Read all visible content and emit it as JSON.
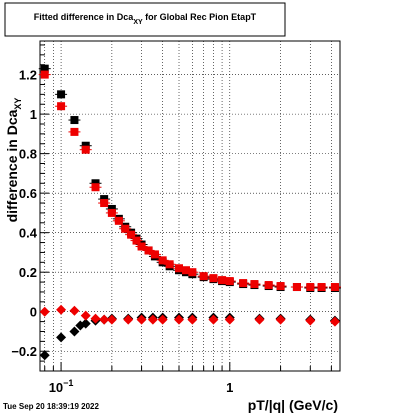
{
  "chart_data": {
    "type": "scatter",
    "title": {
      "base": "Fitted difference in Dca",
      "sub": "XY",
      "rest": " for Global Rec Pion EtapT"
    },
    "xlabel": "pT/|q| (GeV/c)",
    "ylabel": {
      "base": "difference in Dca",
      "sub": "XY"
    },
    "x_scale": "log",
    "xlim": [
      0.075,
      4.5
    ],
    "ylim": [
      -0.3,
      1.37
    ],
    "grid": true,
    "x_ticks": [
      {
        "value": 0.1,
        "base": "10",
        "exp": "−1"
      },
      {
        "value": 1,
        "base": "1",
        "exp": ""
      }
    ],
    "y_ticks": [
      -0.2,
      0,
      0.2,
      0.4,
      0.6,
      0.8,
      1,
      1.2
    ],
    "series": [
      {
        "marker": "square",
        "color": "#000000",
        "x": [
          0.08,
          0.1,
          0.12,
          0.14,
          0.16,
          0.18,
          0.2,
          0.22,
          0.24,
          0.26,
          0.28,
          0.3,
          0.33,
          0.36,
          0.4,
          0.44,
          0.5,
          0.55,
          0.6,
          0.7,
          0.8,
          0.9,
          1.0,
          1.2,
          1.4,
          1.7,
          2.0,
          2.5,
          3.0,
          3.5,
          4.2
        ],
        "y": [
          1.23,
          1.1,
          0.97,
          0.84,
          0.65,
          0.57,
          0.52,
          0.47,
          0.43,
          0.4,
          0.37,
          0.34,
          0.31,
          0.28,
          0.25,
          0.23,
          0.21,
          0.2,
          0.19,
          0.175,
          0.165,
          0.155,
          0.15,
          0.14,
          0.135,
          0.13,
          0.125,
          0.125,
          0.12,
          0.12,
          0.12
        ]
      },
      {
        "marker": "square",
        "color": "#ee0000",
        "x": [
          0.08,
          0.1,
          0.12,
          0.14,
          0.16,
          0.18,
          0.2,
          0.22,
          0.24,
          0.26,
          0.28,
          0.3,
          0.33,
          0.36,
          0.4,
          0.44,
          0.5,
          0.55,
          0.6,
          0.7,
          0.8,
          0.9,
          1.0,
          1.2,
          1.4,
          1.7,
          2.0,
          2.5,
          3.0,
          3.5,
          4.2
        ],
        "y": [
          1.2,
          1.04,
          0.91,
          0.82,
          0.63,
          0.55,
          0.5,
          0.46,
          0.42,
          0.39,
          0.36,
          0.33,
          0.31,
          0.29,
          0.26,
          0.24,
          0.22,
          0.21,
          0.2,
          0.18,
          0.17,
          0.16,
          0.155,
          0.145,
          0.14,
          0.135,
          0.13,
          0.125,
          0.125,
          0.125,
          0.125
        ]
      },
      {
        "marker": "diamond",
        "color": "#000000",
        "x": [
          0.08,
          0.1,
          0.12,
          0.13,
          0.14,
          0.16,
          0.18,
          0.2,
          0.25,
          0.3,
          0.35,
          0.4,
          0.5,
          0.6,
          0.8,
          1.0,
          1.5,
          2.0,
          3.0,
          4.2
        ],
        "y": [
          -0.22,
          -0.13,
          -0.1,
          -0.07,
          -0.06,
          -0.045,
          -0.04,
          -0.035,
          -0.035,
          -0.03,
          -0.03,
          -0.03,
          -0.03,
          -0.03,
          -0.03,
          -0.03,
          -0.035,
          -0.035,
          -0.04,
          -0.045
        ]
      },
      {
        "marker": "diamond",
        "color": "#ee0000",
        "x": [
          0.08,
          0.1,
          0.12,
          0.14,
          0.16,
          0.18,
          0.2,
          0.25,
          0.3,
          0.35,
          0.4,
          0.5,
          0.6,
          0.8,
          1.0,
          1.5,
          2.0,
          3.0,
          4.2
        ],
        "y": [
          0.0,
          0.01,
          0.005,
          -0.02,
          -0.035,
          -0.04,
          -0.04,
          -0.04,
          -0.04,
          -0.04,
          -0.04,
          -0.04,
          -0.04,
          -0.04,
          -0.04,
          -0.04,
          -0.04,
          -0.045,
          -0.05
        ]
      }
    ]
  },
  "footer": "Tue Sep 20 18:39:19 2022"
}
